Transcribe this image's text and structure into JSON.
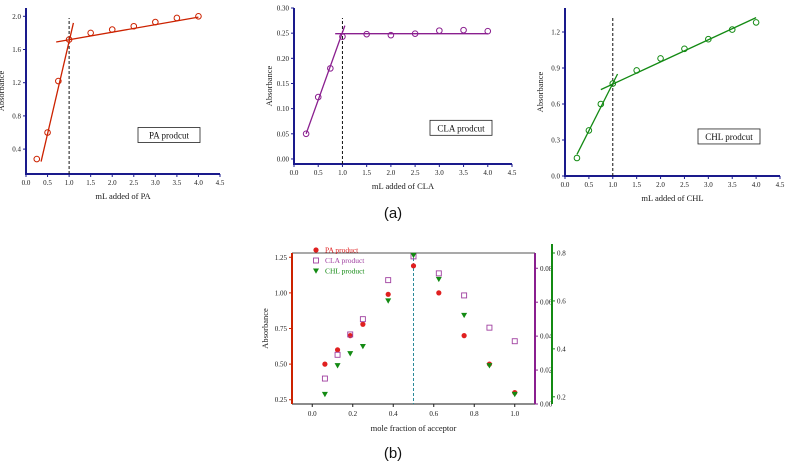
{
  "chart_data": [
    {
      "type": "scatter",
      "id": "pa",
      "color": "#cc2200",
      "marker": "open-circle",
      "x": [
        0.25,
        0.5,
        0.75,
        1.0,
        1.5,
        2.0,
        2.5,
        3.0,
        3.5,
        4.0
      ],
      "y": [
        0.28,
        0.6,
        1.22,
        1.72,
        1.8,
        1.84,
        1.88,
        1.93,
        1.98,
        2.0
      ],
      "fit_lines": [
        [
          [
            0.35,
            0.25
          ],
          [
            1.1,
            1.92
          ]
        ],
        [
          [
            0.7,
            1.69
          ],
          [
            4.0,
            1.99
          ]
        ]
      ],
      "equivalence_x": 1.0,
      "xlim": [
        0,
        4.5
      ],
      "ylim": [
        0.1,
        2.1
      ],
      "xticks": [
        "0.0",
        "0.5",
        "1.0",
        "1.5",
        "2.0",
        "2.5",
        "3.0",
        "3.5",
        "4.0",
        "4.5"
      ],
      "yticks": [
        "0.4",
        "0.8",
        "1.2",
        "1.6",
        "2.0"
      ],
      "xlabel": "mL added of PA",
      "ylabel": "Absorbance",
      "label": "PA prodcut"
    },
    {
      "type": "scatter",
      "id": "cla",
      "color": "#8a1f8f",
      "marker": "open-circle",
      "x": [
        0.25,
        0.5,
        0.75,
        1.0,
        1.5,
        2.0,
        2.5,
        3.0,
        3.5,
        4.0
      ],
      "y": [
        0.05,
        0.123,
        0.18,
        0.243,
        0.248,
        0.246,
        0.249,
        0.255,
        0.256,
        0.254
      ],
      "fit_lines": [
        [
          [
            0.25,
            0.05
          ],
          [
            1.05,
            0.265
          ]
        ],
        [
          [
            0.85,
            0.249
          ],
          [
            4.0,
            0.249
          ]
        ]
      ],
      "equivalence_x": 1.0,
      "xlim": [
        0,
        4.5
      ],
      "ylim": [
        -0.01,
        0.3
      ],
      "xticks": [
        "0.0",
        "0.5",
        "1.0",
        "1.5",
        "2.0",
        "2.5",
        "3.0",
        "3.5",
        "4.0",
        "4.5"
      ],
      "yticks": [
        "0.00",
        "0.05",
        "0.10",
        "0.15",
        "0.20",
        "0.25",
        "0.30"
      ],
      "xlabel": "mL added of CLA",
      "ylabel": "Absorbance",
      "label": "CLA prodcut"
    },
    {
      "type": "scatter",
      "id": "chl",
      "color": "#138a13",
      "marker": "open-circle",
      "x": [
        0.25,
        0.5,
        0.75,
        1.0,
        1.5,
        2.0,
        2.5,
        3.0,
        3.5,
        4.0
      ],
      "y": [
        0.15,
        0.38,
        0.6,
        0.77,
        0.88,
        0.98,
        1.06,
        1.14,
        1.22,
        1.28
      ],
      "fit_lines": [
        [
          [
            0.25,
            0.18
          ],
          [
            1.1,
            0.85
          ]
        ],
        [
          [
            0.75,
            0.72
          ],
          [
            4.0,
            1.32
          ]
        ]
      ],
      "equivalence_x": 1.0,
      "xlim": [
        0,
        4.5
      ],
      "ylim": [
        0,
        1.4
      ],
      "xticks": [
        "0.0",
        "0.5",
        "1.0",
        "1.5",
        "2.0",
        "2.5",
        "3.0",
        "3.5",
        "4.0",
        "4.5"
      ],
      "yticks": [
        "0.0",
        "0.3",
        "0.6",
        "0.9",
        "1.2"
      ],
      "xlabel": "mL added of CHL",
      "ylabel": "Absorbance",
      "label": "CHL prodcut"
    },
    {
      "type": "scatter",
      "id": "job",
      "xlabel": "mole fraction of acceptor",
      "ylabel": "Absorbance",
      "xlim": [
        -0.1,
        1.1
      ],
      "xticks": [
        "0.0",
        "0.2",
        "0.4",
        "0.6",
        "0.8",
        "1.0"
      ],
      "equivalence_x": 0.5,
      "axes": [
        {
          "id": "left",
          "color": "#cc2200",
          "ylim": [
            0.22,
            1.28
          ],
          "yticks": [
            "0.25",
            "0.50",
            "0.75",
            "1.00",
            "1.25"
          ]
        },
        {
          "id": "right1",
          "color": "#8a1f8f",
          "ylim": [
            0.0,
            0.089
          ],
          "yticks": [
            "0.00",
            "0.02",
            "0.04",
            "0.06",
            "0.08"
          ]
        },
        {
          "id": "right2",
          "color": "#138a13",
          "ylim": [
            0.17,
            0.8
          ],
          "yticks": [
            "0.2",
            "0.4",
            "0.6",
            "0.8"
          ]
        }
      ],
      "series": [
        {
          "name": "PA product",
          "axis": "left",
          "marker": "filled-circle",
          "color": "#e02020",
          "x": [
            0.0625,
            0.125,
            0.1875,
            0.25,
            0.375,
            0.5,
            0.625,
            0.75,
            0.875,
            1.0
          ],
          "y": [
            0.5,
            0.6,
            0.7,
            0.78,
            0.99,
            1.19,
            1.0,
            0.7,
            0.5,
            0.3
          ]
        },
        {
          "name": "CLA product",
          "axis": "right1",
          "marker": "open-square",
          "color": "#a040a0",
          "x": [
            0.0625,
            0.125,
            0.1875,
            0.25,
            0.375,
            0.5,
            0.625,
            0.75,
            0.875,
            1.0
          ],
          "y": [
            0.015,
            0.029,
            0.041,
            0.05,
            0.073,
            0.087,
            0.077,
            0.064,
            0.045,
            0.037
          ]
        },
        {
          "name": "CHL product",
          "axis": "right2",
          "marker": "filled-triangle-down",
          "color": "#138a13",
          "x": [
            0.0625,
            0.125,
            0.1875,
            0.25,
            0.375,
            0.5,
            0.625,
            0.75,
            0.875,
            1.0
          ],
          "y": [
            0.21,
            0.33,
            0.38,
            0.41,
            0.6,
            0.79,
            0.69,
            0.54,
            0.33,
            0.21
          ]
        }
      ]
    }
  ],
  "panel_labels": [
    "(a)",
    "(b)"
  ]
}
